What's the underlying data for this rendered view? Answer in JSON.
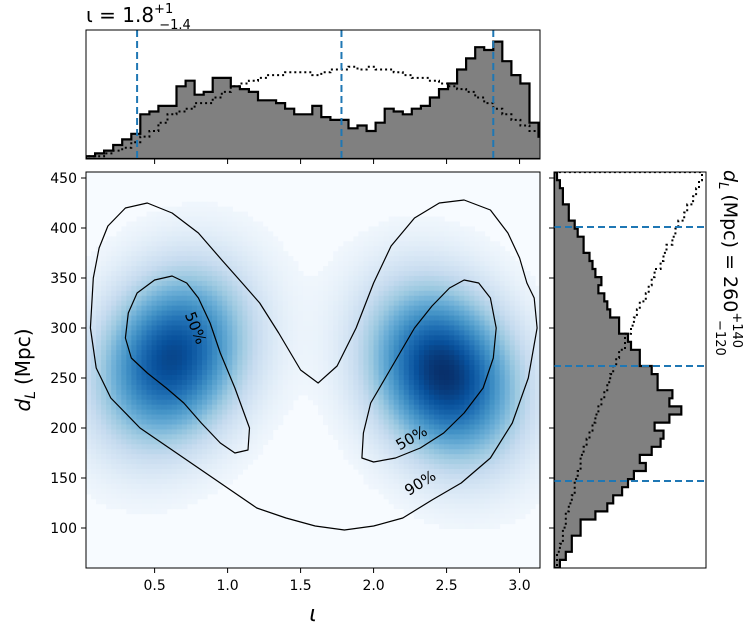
{
  "chart_data": [
    {
      "type": "heatmap",
      "xlabel": "ι",
      "ylabel_main": "d",
      "ylabel_sub": "L",
      "ylabel_unit": "(Mpc)",
      "xlim": [
        0.03,
        3.14
      ],
      "ylim": [
        60,
        456
      ],
      "xticks": [
        "0.5",
        "1.0",
        "1.5",
        "2.0",
        "2.5",
        "3.0"
      ],
      "xtick_values": [
        0.5,
        1.0,
        1.5,
        2.0,
        2.5,
        3.0
      ],
      "yticks": [
        "100",
        "150",
        "200",
        "250",
        "300",
        "350",
        "400",
        "450"
      ],
      "ytick_values": [
        100,
        150,
        200,
        250,
        300,
        350,
        400,
        450
      ],
      "colormap": "Blues",
      "density_peaks": [
        {
          "x": 0.62,
          "y": 270,
          "weight": 0.9
        },
        {
          "x": 2.48,
          "y": 255,
          "weight": 1.0
        }
      ],
      "contours": [
        {
          "label": "50%",
          "x": [
            0.3,
            0.32,
            0.38,
            0.5,
            0.62,
            0.72,
            0.8,
            0.88,
            0.95,
            1.05,
            1.15,
            1.14,
            1.05,
            0.95,
            0.82,
            0.7,
            0.58,
            0.45,
            0.34,
            0.3
          ],
          "y": [
            290,
            315,
            335,
            348,
            352,
            345,
            330,
            305,
            275,
            240,
            200,
            178,
            175,
            185,
            205,
            225,
            240,
            255,
            270,
            290
          ]
        },
        {
          "label": "50%",
          "x": [
            1.92,
            1.93,
            1.98,
            2.08,
            2.18,
            2.28,
            2.4,
            2.52,
            2.62,
            2.72,
            2.8,
            2.84,
            2.82,
            2.75,
            2.62,
            2.48,
            2.32,
            2.15,
            2.0,
            1.92
          ],
          "y": [
            170,
            195,
            225,
            250,
            275,
            300,
            322,
            340,
            348,
            345,
            330,
            300,
            270,
            240,
            215,
            195,
            180,
            170,
            166,
            170
          ]
        },
        {
          "label": "90%",
          "x": [
            0.06,
            0.08,
            0.12,
            0.18,
            0.3,
            0.45,
            0.62,
            0.8,
            0.96,
            1.1,
            1.22,
            1.35,
            1.5,
            1.62,
            1.75,
            1.88,
            2.0,
            2.12,
            2.28,
            2.45,
            2.62,
            2.8,
            2.92,
            3.0,
            3.05,
            3.1,
            3.12,
            3.06,
            2.95,
            2.8,
            2.6,
            2.4,
            2.2,
            2.0,
            1.8,
            1.6,
            1.4,
            1.2,
            1.0,
            0.8,
            0.6,
            0.4,
            0.2,
            0.1,
            0.06
          ],
          "y": [
            300,
            350,
            380,
            402,
            420,
            425,
            415,
            395,
            368,
            345,
            325,
            295,
            258,
            245,
            262,
            300,
            345,
            382,
            410,
            425,
            428,
            418,
            395,
            370,
            345,
            330,
            300,
            250,
            205,
            170,
            145,
            128,
            110,
            102,
            98,
            102,
            110,
            120,
            140,
            160,
            180,
            200,
            230,
            260,
            300
          ]
        }
      ],
      "annotations": [
        "50%",
        "50%",
        "90%"
      ]
    },
    {
      "type": "histogram",
      "panel": "top",
      "title_base": "ι = 1.8",
      "title_sup": "+1",
      "title_sub": "−1.4",
      "x_edges_start": 0.03,
      "x_edges_step": 0.062,
      "posterior": [
        1,
        2,
        3,
        5,
        7,
        9,
        16,
        17,
        19,
        19,
        26,
        28,
        23,
        24,
        29,
        29,
        26,
        25,
        24,
        21,
        21,
        20,
        18,
        16,
        16,
        19,
        15,
        14,
        14,
        11,
        12,
        10,
        13,
        18,
        17,
        16,
        18,
        19,
        22,
        25,
        27,
        32,
        36,
        40,
        39,
        42,
        35,
        30,
        27,
        13,
        8,
        6,
        3,
        1
      ],
      "prior": [
        1,
        1,
        2,
        3,
        4,
        6,
        8,
        10,
        13,
        16,
        17,
        18,
        20,
        20,
        22,
        24,
        26,
        27,
        28,
        29,
        30,
        30,
        31,
        31,
        31,
        30,
        31,
        32,
        32,
        33,
        32,
        33,
        32,
        32,
        31,
        30,
        29,
        29,
        28,
        27,
        26,
        25,
        24,
        22,
        20,
        18,
        16,
        14,
        12,
        10,
        8,
        6,
        4,
        2
      ],
      "quantile_lines": [
        0.38,
        1.78,
        2.82
      ]
    },
    {
      "type": "histogram",
      "panel": "right",
      "orientation": "horizontal",
      "title_base": "d",
      "title_sub_main": "L",
      "title_rest": "(Mpc) = 260",
      "title_sup": "+140",
      "title_sub": "−120",
      "y_edges_start": 60,
      "y_edges_step": 8.08,
      "posterior": [
        2,
        4,
        6,
        6,
        9,
        9,
        14,
        18,
        20,
        23,
        25,
        27,
        31,
        29,
        33,
        36,
        37,
        34,
        39,
        43,
        39,
        40,
        35,
        35,
        33,
        29,
        29,
        26,
        25,
        22,
        22,
        19,
        18,
        17,
        15,
        16,
        14,
        13,
        12,
        10,
        10,
        8,
        7,
        5,
        5,
        3,
        3,
        2,
        1
      ],
      "prior": [
        1,
        1,
        2,
        3,
        3,
        4,
        4,
        5,
        6,
        7,
        7,
        8,
        9,
        9,
        10,
        11,
        12,
        13,
        14,
        15,
        16,
        17,
        18,
        19,
        20,
        21,
        22,
        24,
        24,
        26,
        27,
        28,
        29,
        31,
        32,
        33,
        34,
        36,
        37,
        38,
        40,
        41,
        42,
        44,
        45,
        47,
        48,
        49,
        50
      ],
      "quantile_lines": [
        147,
        262,
        401
      ]
    }
  ]
}
